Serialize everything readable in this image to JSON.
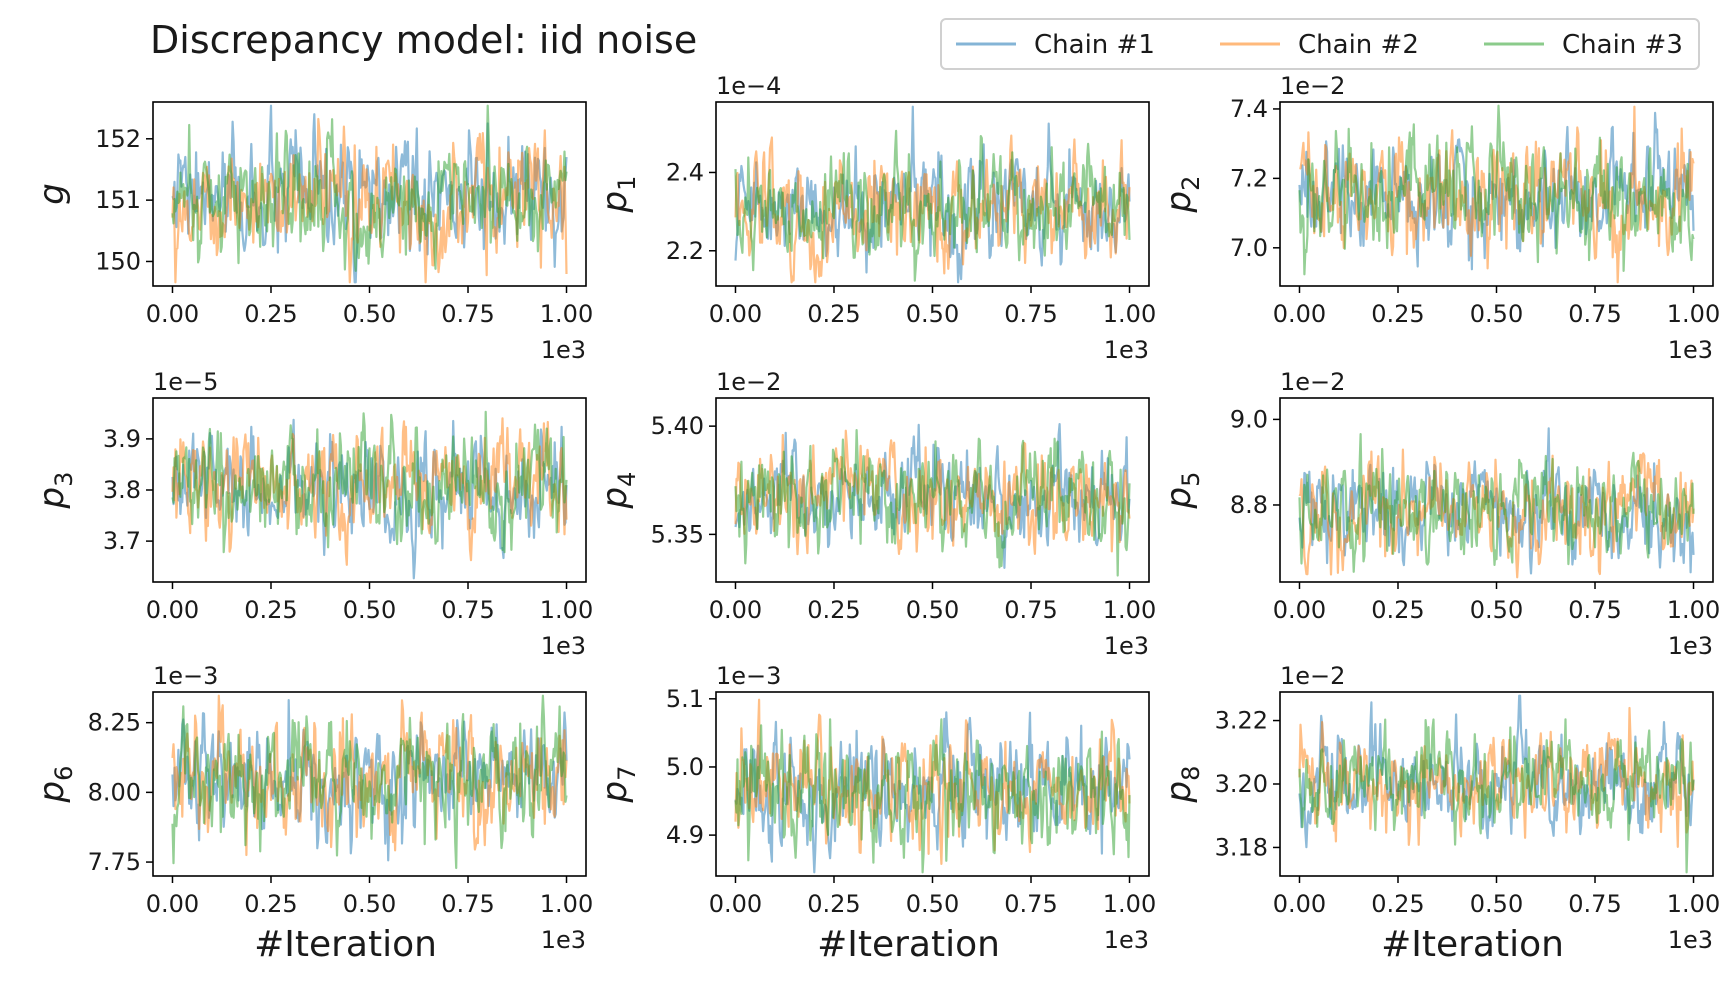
{
  "title": "Discrepancy model: iid noise",
  "colors": {
    "chain1": "#1f77b4",
    "chain2": "#ff7f0e",
    "chain3": "#2ca02c"
  },
  "legend": {
    "entries": [
      {
        "label": "Chain #1",
        "color": "#1f77b4"
      },
      {
        "label": "Chain #2",
        "color": "#ff7f0e"
      },
      {
        "label": "Chain #3",
        "color": "#2ca02c"
      }
    ]
  },
  "chart_data": [
    {
      "type": "line",
      "ylabel": "g",
      "ylabel_sub": "",
      "multiplier": "",
      "ylim": [
        149.6,
        152.6
      ],
      "yticks": [
        150,
        151,
        152
      ],
      "ytick_labels": [
        "150",
        "151",
        "152"
      ],
      "center": 151.0,
      "spread": 0.45,
      "xlim": [
        0,
        1000
      ],
      "xticks": [
        "0.00",
        "0.25",
        "0.50",
        "0.75",
        "1.00"
      ],
      "xmultiplier": "1e3",
      "xlabel": "",
      "series": [
        {
          "name": "Chain #1"
        },
        {
          "name": "Chain #2"
        },
        {
          "name": "Chain #3"
        }
      ]
    },
    {
      "type": "line",
      "ylabel": "p",
      "ylabel_sub": "1",
      "multiplier": "1e−4",
      "ylim": [
        2.11,
        2.58
      ],
      "yticks": [
        2.2,
        2.4
      ],
      "ytick_labels": [
        "2.2",
        "2.4"
      ],
      "center": 2.31,
      "spread": 0.065,
      "xlim": [
        0,
        1000
      ],
      "xticks": [
        "0.00",
        "0.25",
        "0.50",
        "0.75",
        "1.00"
      ],
      "xmultiplier": "1e3",
      "xlabel": "",
      "series": [
        {
          "name": "Chain #1"
        },
        {
          "name": "Chain #2"
        },
        {
          "name": "Chain #3"
        }
      ]
    },
    {
      "type": "line",
      "ylabel": "p",
      "ylabel_sub": "2",
      "multiplier": "1e−2",
      "ylim": [
        6.89,
        7.42
      ],
      "yticks": [
        7.0,
        7.2,
        7.4
      ],
      "ytick_labels": [
        "7.0",
        "7.2",
        "7.4"
      ],
      "center": 7.15,
      "spread": 0.075,
      "xlim": [
        0,
        1000
      ],
      "xticks": [
        "0.00",
        "0.25",
        "0.50",
        "0.75",
        "1.00"
      ],
      "xmultiplier": "1e3",
      "xlabel": "",
      "series": [
        {
          "name": "Chain #1"
        },
        {
          "name": "Chain #2"
        },
        {
          "name": "Chain #3"
        }
      ]
    },
    {
      "type": "line",
      "ylabel": "p",
      "ylabel_sub": "3",
      "multiplier": "1e−5",
      "ylim": [
        3.62,
        3.98
      ],
      "yticks": [
        3.7,
        3.8,
        3.9
      ],
      "ytick_labels": [
        "3.7",
        "3.8",
        "3.9"
      ],
      "center": 3.805,
      "spread": 0.05,
      "xlim": [
        0,
        1000
      ],
      "xticks": [
        "0.00",
        "0.25",
        "0.50",
        "0.75",
        "1.00"
      ],
      "xmultiplier": "1e3",
      "xlabel": "",
      "series": [
        {
          "name": "Chain #1"
        },
        {
          "name": "Chain #2"
        },
        {
          "name": "Chain #3"
        }
      ]
    },
    {
      "type": "line",
      "ylabel": "p",
      "ylabel_sub": "4",
      "multiplier": "1e−2",
      "ylim": [
        5.328,
        5.413
      ],
      "yticks": [
        5.35,
        5.4
      ],
      "ytick_labels": [
        "5.35",
        "5.40"
      ],
      "center": 5.367,
      "spread": 0.011,
      "xlim": [
        0,
        1000
      ],
      "xticks": [
        "0.00",
        "0.25",
        "0.50",
        "0.75",
        "1.00"
      ],
      "xmultiplier": "1e3",
      "xlabel": "",
      "series": [
        {
          "name": "Chain #1"
        },
        {
          "name": "Chain #2"
        },
        {
          "name": "Chain #3"
        }
      ]
    },
    {
      "type": "line",
      "ylabel": "p",
      "ylabel_sub": "5",
      "multiplier": "1e−2",
      "ylim": [
        8.62,
        9.05
      ],
      "yticks": [
        8.8,
        9.0
      ],
      "ytick_labels": [
        "8.8",
        "9.0"
      ],
      "center": 8.785,
      "spread": 0.055,
      "xlim": [
        0,
        1000
      ],
      "xticks": [
        "0.00",
        "0.25",
        "0.50",
        "0.75",
        "1.00"
      ],
      "xmultiplier": "1e3",
      "xlabel": "",
      "series": [
        {
          "name": "Chain #1"
        },
        {
          "name": "Chain #2"
        },
        {
          "name": "Chain #3"
        }
      ]
    },
    {
      "type": "line",
      "ylabel": "p",
      "ylabel_sub": "6",
      "multiplier": "1e−3",
      "ylim": [
        7.7,
        8.36
      ],
      "yticks": [
        7.75,
        8.0,
        8.25
      ],
      "ytick_labels": [
        "7.75",
        "8.00",
        "8.25"
      ],
      "center": 8.05,
      "spread": 0.1,
      "xlim": [
        0,
        1000
      ],
      "xticks": [
        "0.00",
        "0.25",
        "0.50",
        "0.75",
        "1.00"
      ],
      "xmultiplier": "1e3",
      "xlabel": "#Iteration",
      "series": [
        {
          "name": "Chain #1"
        },
        {
          "name": "Chain #2"
        },
        {
          "name": "Chain #3"
        }
      ]
    },
    {
      "type": "line",
      "ylabel": "p",
      "ylabel_sub": "7",
      "multiplier": "1e−3",
      "ylim": [
        4.84,
        5.11
      ],
      "yticks": [
        4.9,
        5.0,
        5.1
      ],
      "ytick_labels": [
        "4.9",
        "5.0",
        "5.1"
      ],
      "center": 4.965,
      "spread": 0.04,
      "xlim": [
        0,
        1000
      ],
      "xticks": [
        "0.00",
        "0.25",
        "0.50",
        "0.75",
        "1.00"
      ],
      "xmultiplier": "1e3",
      "xlabel": "#Iteration",
      "series": [
        {
          "name": "Chain #1"
        },
        {
          "name": "Chain #2"
        },
        {
          "name": "Chain #3"
        }
      ]
    },
    {
      "type": "line",
      "ylabel": "p",
      "ylabel_sub": "8",
      "multiplier": "1e−2",
      "ylim": [
        3.171,
        3.229
      ],
      "yticks": [
        3.18,
        3.2,
        3.22
      ],
      "ytick_labels": [
        "3.18",
        "3.20",
        "3.22"
      ],
      "center": 3.201,
      "spread": 0.0075,
      "xlim": [
        0,
        1000
      ],
      "xticks": [
        "0.00",
        "0.25",
        "0.50",
        "0.75",
        "1.00"
      ],
      "xmultiplier": "1e3",
      "xlabel": "#Iteration",
      "series": [
        {
          "name": "Chain #1"
        },
        {
          "name": "Chain #2"
        },
        {
          "name": "Chain #3"
        }
      ]
    }
  ]
}
